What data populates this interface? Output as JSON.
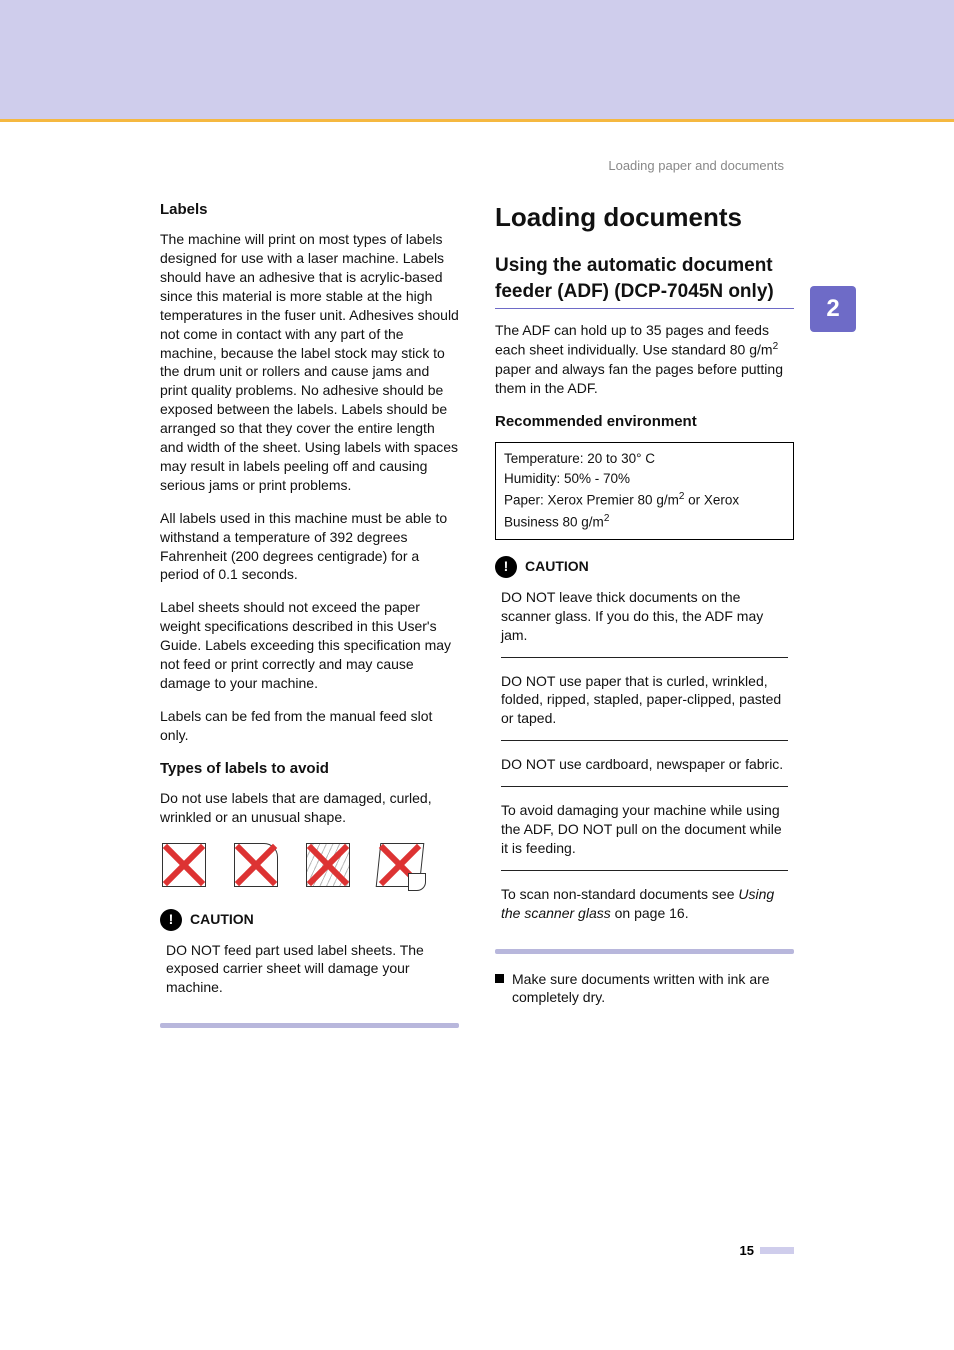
{
  "breadcrumb": "Loading paper and documents",
  "chapter_tab": "2",
  "page_number": "15",
  "left": {
    "h_labels": "Labels",
    "p1": "The machine will print on most types of labels designed for use with a laser machine. Labels should have an adhesive that is acrylic-based since this material is more stable at the high temperatures in the fuser unit. Adhesives should not come in contact with any part of the machine, because the label stock may stick to the drum unit or rollers and cause jams and print quality problems. No adhesive should be exposed between the labels. Labels should be arranged so that they cover the entire length and width of the sheet. Using labels with spaces may result in labels peeling off and causing serious jams or print problems.",
    "p2": "All labels used in this machine must be able to withstand a temperature of 392 degrees Fahrenheit (200 degrees centigrade) for a period of 0.1 seconds.",
    "p3": "Label sheets should not exceed the paper weight specifications described in this User's Guide. Labels exceeding this specification may not feed or print correctly and may cause damage to your machine.",
    "p4": "Labels can be fed from the manual feed slot only.",
    "h_avoid": "Types of labels to avoid",
    "p_avoid": "Do not use labels that are damaged, curled, wrinkled or an unusual shape.",
    "caution_label": "CAUTION",
    "caution_body": "DO NOT feed part used label sheets. The exposed carrier sheet will damage your machine."
  },
  "right": {
    "h1": "Loading documents",
    "h2": "Using the automatic document feeder (ADF)  (DCP-7045N only)",
    "p_adf_a": "The ADF can hold up to 35 pages and feeds each sheet individually. Use standard 80 g/m",
    "p_adf_b": " paper and always fan the pages before putting them in the ADF.",
    "h_env": "Recommended environment",
    "env_temp": "Temperature: 20 to 30° C",
    "env_hum": "Humidity: 50% - 70%",
    "env_paper_a": "Paper: Xerox Premier 80 g/m",
    "env_paper_b": " or Xerox Business 80 g/m",
    "caution_label": "CAUTION",
    "c1": "DO NOT leave thick documents on the scanner glass. If you do this, the ADF may jam.",
    "c2": "DO NOT use paper that is curled, wrinkled, folded, ripped, stapled, paper-clipped, pasted or taped.",
    "c3": "DO NOT use cardboard, newspaper or fabric.",
    "c4": "To avoid damaging your machine while using the ADF, DO NOT pull on the document while it is feeding.",
    "c5_a": "To scan non-standard documents see ",
    "c5_link": "Using the scanner glass",
    "c5_b": " on page 16.",
    "bullet": "Make sure documents written with ink are completely dry."
  }
}
